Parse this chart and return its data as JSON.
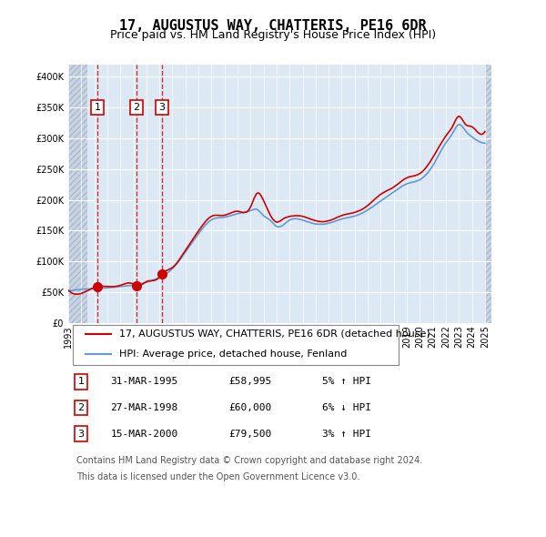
{
  "title": "17, AUGUSTUS WAY, CHATTERIS, PE16 6DR",
  "subtitle": "Price paid vs. HM Land Registry's House Price Index (HPI)",
  "legend_line1": "17, AUGUSTUS WAY, CHATTERIS, PE16 6DR (detached house)",
  "legend_line2": "HPI: Average price, detached house, Fenland",
  "footer1": "Contains HM Land Registry data © Crown copyright and database right 2024.",
  "footer2": "This data is licensed under the Open Government Licence v3.0.",
  "transactions": [
    {
      "num": 1,
      "date": "31-MAR-1995",
      "price": 58995,
      "pct": "5%",
      "dir": "↑",
      "x_year": 1995.24
    },
    {
      "num": 2,
      "date": "27-MAR-1998",
      "price": 60000,
      "pct": "6%",
      "dir": "↓",
      "x_year": 1998.23
    },
    {
      "num": 3,
      "date": "15-MAR-2000",
      "price": 79500,
      "pct": "3%",
      "dir": "↑",
      "x_year": 2000.21
    }
  ],
  "hpi_color": "#6699cc",
  "price_color": "#cc0000",
  "bg_color": "#dce9f5",
  "grid_color": "#ffffff",
  "hatch_color": "#c0c8d8",
  "ylim": [
    0,
    420000
  ],
  "yticks": [
    0,
    50000,
    100000,
    150000,
    200000,
    250000,
    300000,
    350000,
    400000
  ],
  "xlim_start": 1993.0,
  "xlim_end": 2025.5
}
